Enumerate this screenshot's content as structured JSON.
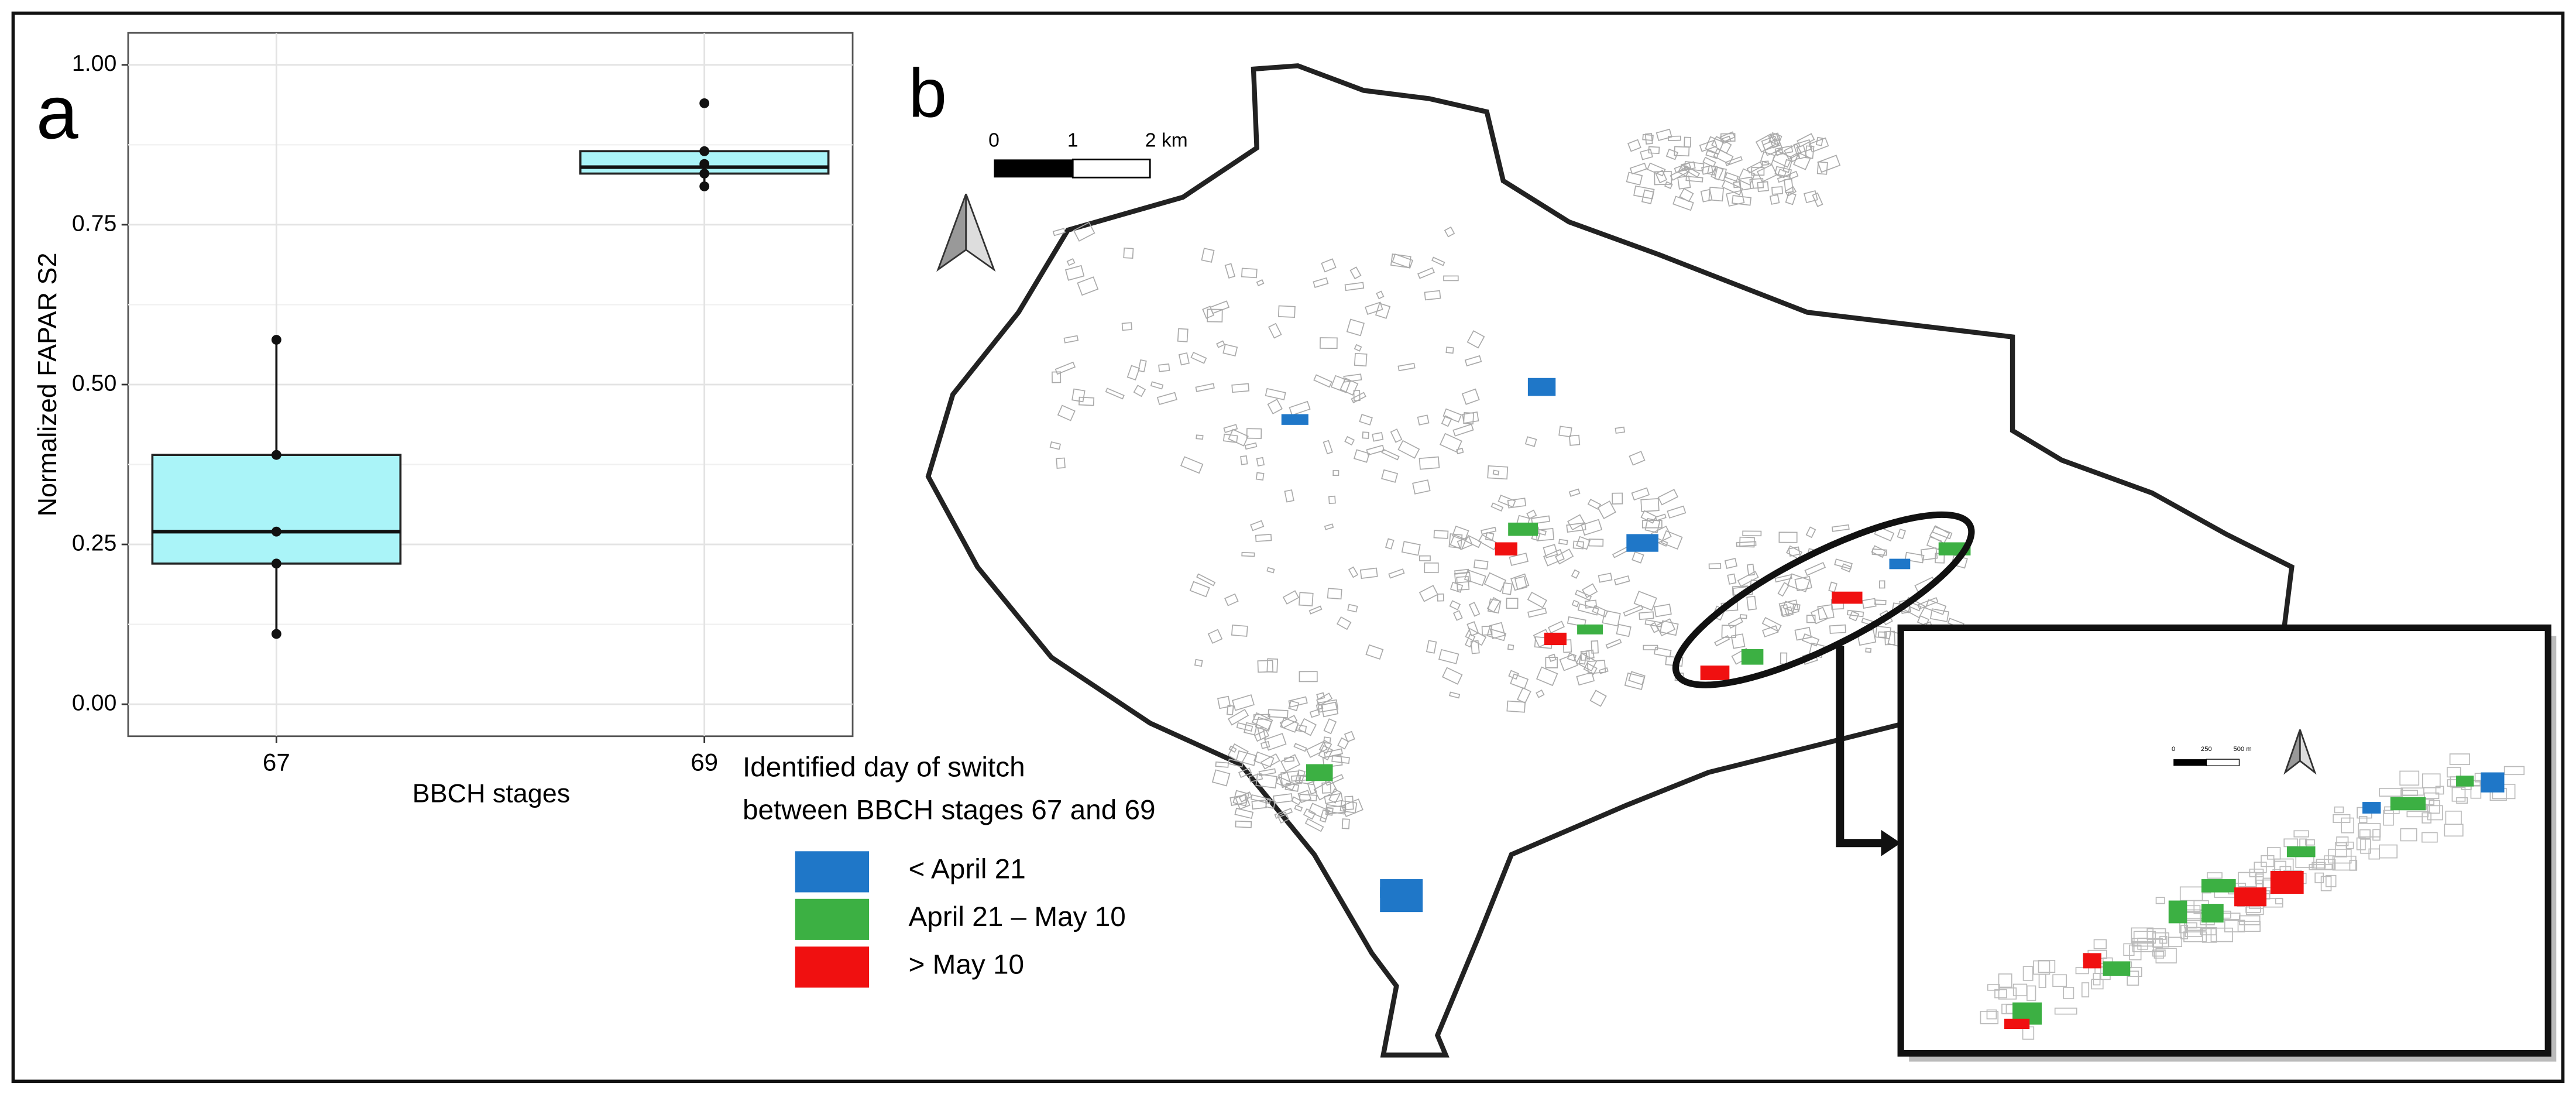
{
  "chart_data": {
    "type": "box",
    "panel_label": "a",
    "x_label": "BBCH stages",
    "y_label": "Normalized FAPAR S2",
    "categories": [
      "67",
      "69"
    ],
    "boxes": [
      {
        "min": 0.11,
        "q1": 0.22,
        "median": 0.27,
        "q3": 0.39,
        "max": 0.57
      },
      {
        "min": 0.81,
        "q1": 0.83,
        "median": 0.84,
        "q3": 0.865,
        "max": 0.865
      }
    ],
    "points": [
      [
        0.57,
        0.39,
        0.27,
        0.22,
        0.11
      ],
      [
        0.94,
        0.865,
        0.845,
        0.83,
        0.81
      ]
    ],
    "color": "#aaf4f8",
    "ylim": [
      -0.05,
      1.05
    ],
    "yticks": [
      {
        "value": 0,
        "label": "0.00"
      },
      {
        "value": 0.25,
        "label": "0.25"
      },
      {
        "value": 0.5,
        "label": "0.50"
      },
      {
        "value": 0.75,
        "label": "0.75"
      },
      {
        "value": 1,
        "label": "1.00"
      }
    ],
    "grid": true
  },
  "map": {
    "panel_label": "b",
    "scale_bar": [
      "0",
      "1",
      "2 km"
    ],
    "inset_scale_bar": [
      "0",
      "250",
      "500 m"
    ],
    "legend": {
      "title_lines": [
        "Identified day of switch",
        "between BBCH stages 67 and 69"
      ],
      "items": [
        {
          "label": "< April 21",
          "color": "#1f77c8"
        },
        {
          "label": "April 21 – May 10",
          "color": "#3cb043"
        },
        {
          "label": "> May 10",
          "color": "#f01010"
        }
      ]
    }
  }
}
